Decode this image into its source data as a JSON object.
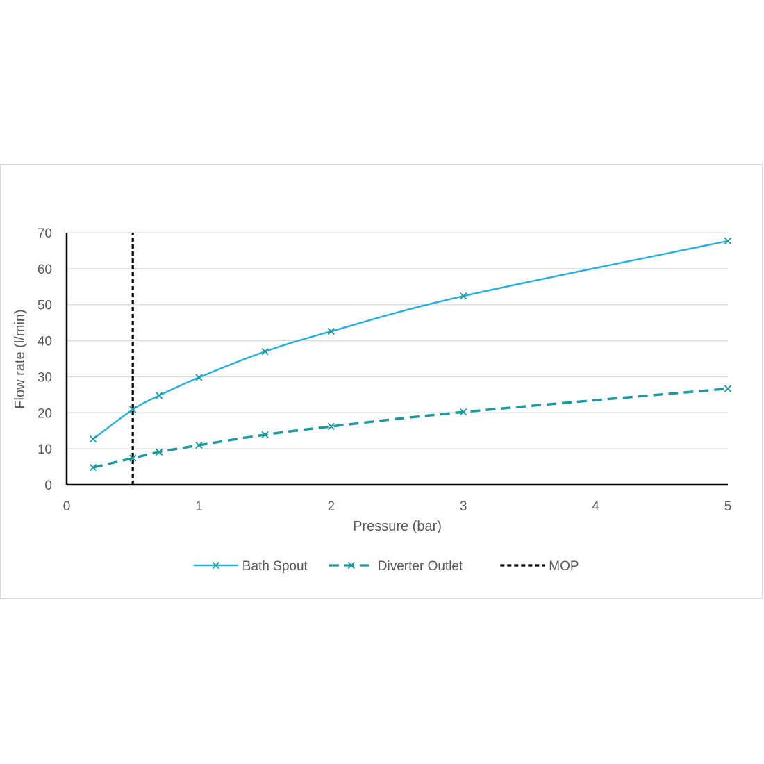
{
  "chart_data": {
    "type": "line",
    "title": "",
    "xlabel": "Pressure (bar)",
    "ylabel": "Flow rate (l/min)",
    "xlim": [
      0,
      5
    ],
    "ylim": [
      0,
      70
    ],
    "x_ticks": [
      "0",
      "1",
      "2",
      "3",
      "4",
      "5"
    ],
    "y_ticks": [
      "0",
      "10",
      "20",
      "30",
      "40",
      "50",
      "60",
      "70"
    ],
    "grid": true,
    "legend_position": "bottom",
    "series": [
      {
        "name": "Bath Spout",
        "color": "#2ab0e0",
        "line_style": "solid",
        "marker": "x",
        "x": [
          0.2,
          0.5,
          0.7,
          1,
          1.5,
          2,
          3,
          5
        ],
        "y": [
          12.7,
          20.9,
          24.8,
          29.8,
          37.0,
          42.6,
          52.4,
          67.7
        ]
      },
      {
        "name": "Diverter Outlet",
        "color": "#1a9a9e",
        "line_style": "dashed",
        "marker": "x",
        "x": [
          0.2,
          0.5,
          0.7,
          1,
          1.5,
          2,
          3,
          5
        ],
        "y": [
          4.8,
          7.4,
          9.1,
          11.0,
          13.9,
          16.2,
          20.2,
          26.7
        ]
      },
      {
        "name": "MOP",
        "color": "#000000",
        "line_style": "dotted",
        "marker": "none",
        "x": [
          0.5,
          0.5
        ],
        "y": [
          0,
          70
        ]
      }
    ]
  }
}
